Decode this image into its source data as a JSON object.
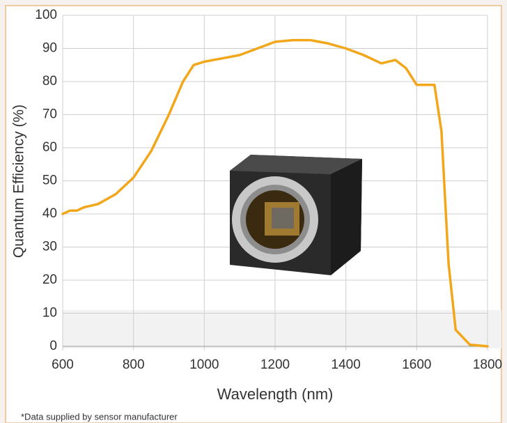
{
  "chart_data": {
    "type": "line",
    "x_label": "Wavelength (nm)",
    "y_label": "Quantum Efficiency (%)",
    "footnote": "*Data supplied by sensor manufacturer",
    "x": [
      600,
      620,
      640,
      660,
      700,
      750,
      800,
      850,
      900,
      940,
      970,
      1000,
      1050,
      1100,
      1150,
      1200,
      1250,
      1300,
      1350,
      1400,
      1450,
      1500,
      1540,
      1570,
      1600,
      1630,
      1650,
      1670,
      1690,
      1710,
      1750,
      1800
    ],
    "values": [
      40,
      41,
      41,
      42,
      43,
      46,
      51,
      59,
      70,
      80,
      85,
      86,
      87,
      88,
      90,
      92,
      92.5,
      92.5,
      91.5,
      90,
      88,
      85.5,
      86.5,
      84,
      79,
      79,
      79,
      65,
      25,
      5,
      0.5,
      0
    ],
    "color": "#f2a61a",
    "xlim": [
      600,
      1800
    ],
    "xticks": [
      600,
      800,
      1000,
      1200,
      1400,
      1600,
      1800
    ],
    "ylim": [
      0,
      100
    ],
    "yticks": [
      0,
      10,
      20,
      30,
      40,
      50,
      60,
      70,
      80,
      90,
      100
    ],
    "grid": true
  }
}
